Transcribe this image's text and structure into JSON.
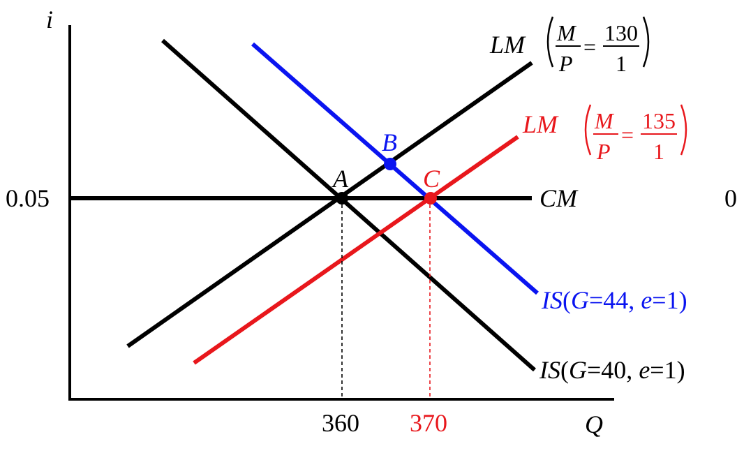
{
  "axes": {
    "y_label": "i",
    "x_label": "Q",
    "y_tick": "0.05",
    "x_ticks": [
      {
        "text": "360",
        "color": "#000000"
      },
      {
        "text": "370",
        "color": "#e8171c"
      }
    ]
  },
  "curves": {
    "lm1": {
      "prefix": "LM",
      "num_var": "M",
      "den_var": "P",
      "eq": "=",
      "num_val": "130",
      "den_val": "1",
      "color": "#000000"
    },
    "lm2": {
      "prefix": "LM",
      "num_var": "M",
      "den_var": "P",
      "eq": "=",
      "num_val": "135",
      "den_val": "1",
      "color": "#e8171c"
    },
    "cm": {
      "label": "CM",
      "color": "#000000"
    },
    "is1": {
      "prefix": "IS",
      "open": "(",
      "g": "G",
      "g_val": "=40, ",
      "e": "e",
      "e_val": "=1)",
      "color": "#000000"
    },
    "is2": {
      "prefix": "IS",
      "open": "(",
      "g": "G",
      "g_val": "=44, ",
      "e": "e",
      "e_val": "=1)",
      "color": "#0a14f0"
    }
  },
  "points": [
    {
      "label": "A",
      "color": "#000000"
    },
    {
      "label": "B",
      "color": "#0a14f0"
    },
    {
      "label": "C",
      "color": "#e8171c"
    }
  ],
  "clipped_right_text": "0"
}
